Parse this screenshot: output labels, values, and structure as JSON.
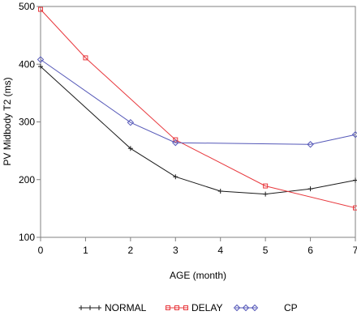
{
  "chart_data": {
    "type": "line",
    "xlabel": "AGE (month)",
    "ylabel": "PV Midbody T2 (ms)",
    "xlim": [
      0,
      7
    ],
    "ylim": [
      100,
      500
    ],
    "x_ticks": [
      0,
      1,
      2,
      3,
      4,
      5,
      6,
      7
    ],
    "y_ticks": [
      100,
      200,
      300,
      400,
      500
    ],
    "grid": false,
    "legend_position": "bottom",
    "series": [
      {
        "name": "NORMAL",
        "marker": "plus",
        "color": "#1a1a1a",
        "x": [
          0,
          2,
          3,
          4,
          5,
          6,
          7
        ],
        "values": [
          396,
          254,
          205,
          180,
          175,
          184,
          199
        ]
      },
      {
        "name": "DELAY",
        "marker": "square",
        "color": "#e8383d",
        "x": [
          0,
          1,
          3,
          5,
          7
        ],
        "values": [
          495,
          411,
          269,
          189,
          151
        ]
      },
      {
        "name": "CP",
        "marker": "diamond",
        "color": "#5558b8",
        "x": [
          0,
          2,
          3,
          6,
          7
        ],
        "values": [
          408,
          299,
          264,
          261,
          278
        ]
      }
    ]
  }
}
